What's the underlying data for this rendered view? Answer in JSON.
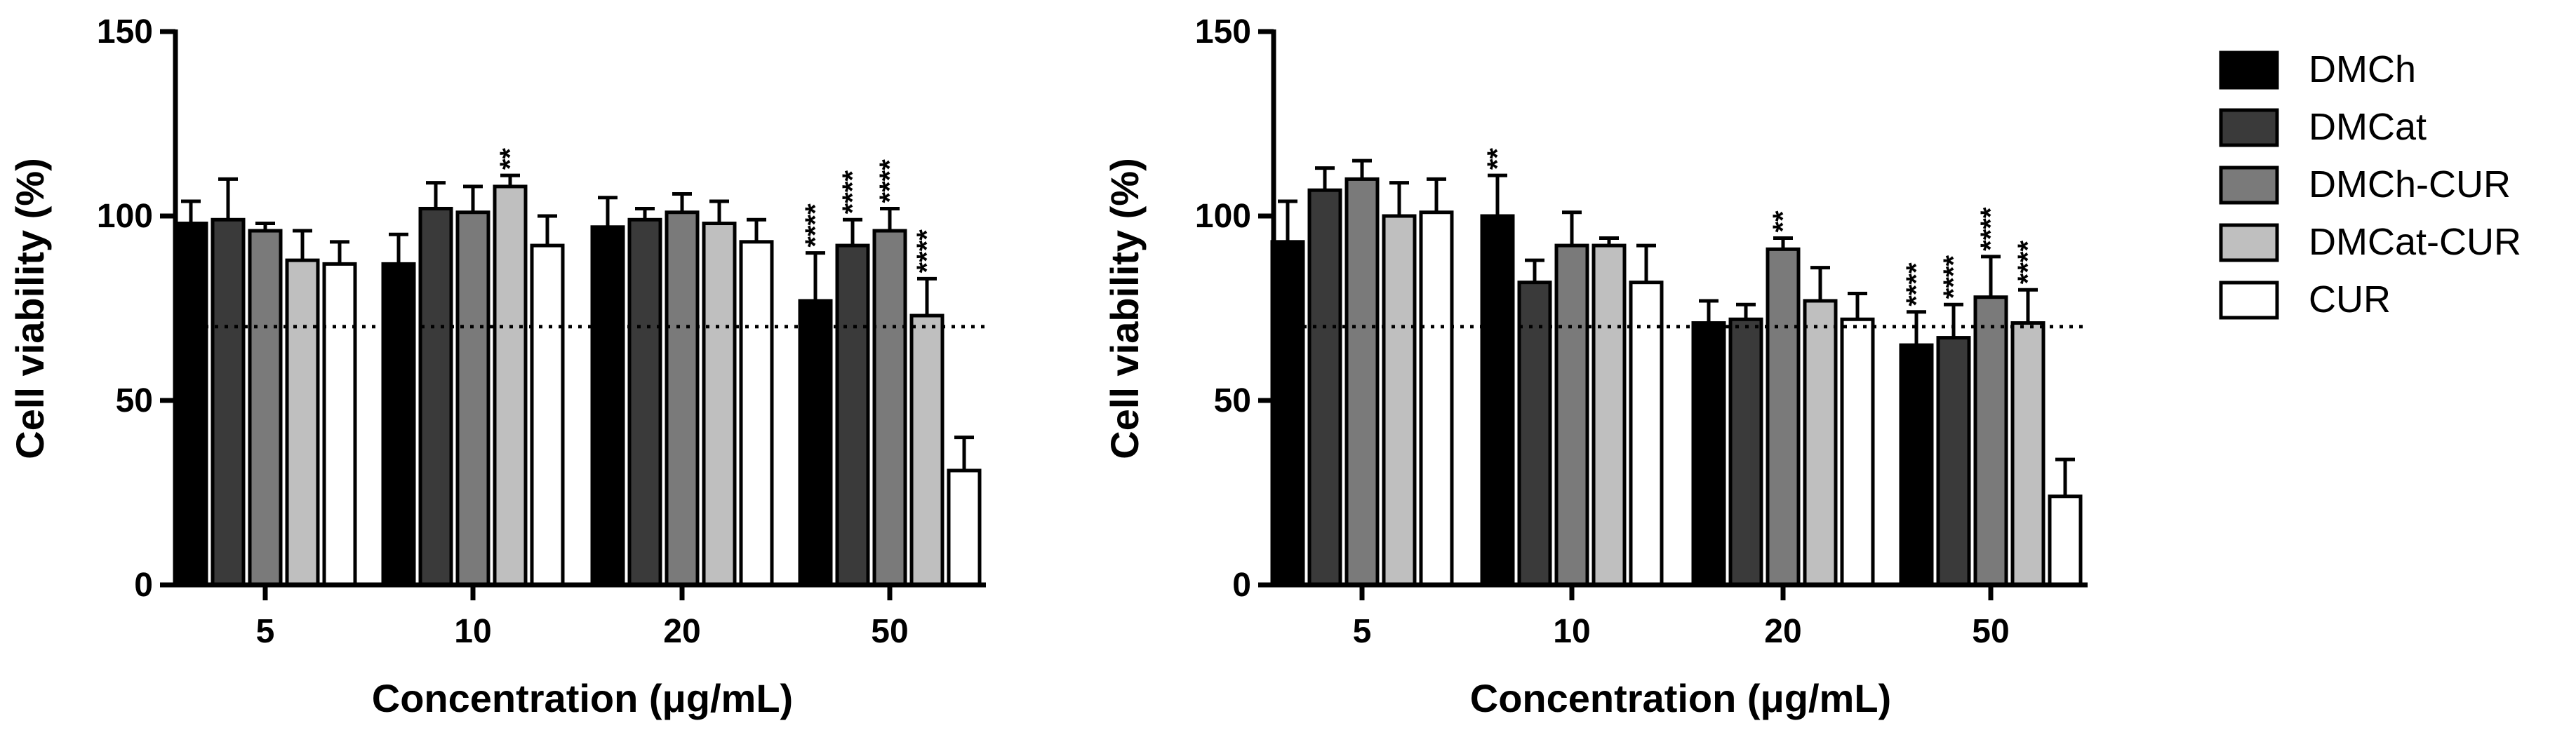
{
  "series_names": [
    "DMCh",
    "DMCat",
    "DMCh-CUR",
    "DMCat-CUR",
    "CUR"
  ],
  "series_colors": [
    "#000000",
    "#3a3a3a",
    "#7a7a7a",
    "#bfbfbf",
    "#ffffff"
  ],
  "chart_data": [
    {
      "type": "bar",
      "title": "",
      "xlabel": "Concentration (μg/mL)",
      "ylabel": "Cell viability (%)",
      "ylim": [
        0,
        150
      ],
      "yticks": [
        "0",
        "50",
        "100",
        "150"
      ],
      "categories": [
        "5",
        "10",
        "20",
        "50"
      ],
      "reference_line": 70,
      "series": [
        {
          "name": "DMCh",
          "values": [
            98,
            87,
            97,
            77
          ],
          "errors": [
            6,
            8,
            8,
            13
          ],
          "significance": [
            "",
            "",
            "",
            "****"
          ]
        },
        {
          "name": "DMCat",
          "values": [
            99,
            102,
            99,
            92
          ],
          "errors": [
            11,
            7,
            3,
            7
          ],
          "significance": [
            "",
            "",
            "",
            "****"
          ]
        },
        {
          "name": "DMCh-CUR",
          "values": [
            96,
            101,
            101,
            96
          ],
          "errors": [
            2,
            7,
            5,
            6
          ],
          "significance": [
            "",
            "",
            "",
            "****"
          ]
        },
        {
          "name": "DMCat-CUR",
          "values": [
            88,
            108,
            98,
            73
          ],
          "errors": [
            8,
            3,
            6,
            10
          ],
          "significance": [
            "",
            "**",
            "",
            "****"
          ]
        },
        {
          "name": "CUR",
          "values": [
            87,
            92,
            93,
            31
          ],
          "errors": [
            6,
            8,
            6,
            9
          ],
          "significance": [
            "",
            "",
            "",
            ""
          ]
        }
      ]
    },
    {
      "type": "bar",
      "title": "",
      "xlabel": "Concentration (μg/mL)",
      "ylabel": "Cell viability (%)",
      "ylim": [
        0,
        150
      ],
      "yticks": [
        "0",
        "50",
        "100",
        "150"
      ],
      "categories": [
        "5",
        "10",
        "20",
        "50"
      ],
      "reference_line": 70,
      "series": [
        {
          "name": "DMCh",
          "values": [
            93,
            100,
            71,
            65
          ],
          "errors": [
            11,
            11,
            6,
            9
          ],
          "significance": [
            "",
            "**",
            "",
            "****"
          ]
        },
        {
          "name": "DMCat",
          "values": [
            107,
            82,
            72,
            67
          ],
          "errors": [
            6,
            6,
            4,
            9
          ],
          "significance": [
            "",
            "",
            "",
            "****"
          ]
        },
        {
          "name": "DMCh-CUR",
          "values": [
            110,
            92,
            91,
            78
          ],
          "errors": [
            5,
            9,
            3,
            11
          ],
          "significance": [
            "",
            "",
            "**",
            "****"
          ]
        },
        {
          "name": "DMCat-CUR",
          "values": [
            100,
            92,
            77,
            71
          ],
          "errors": [
            9,
            2,
            9,
            9
          ],
          "significance": [
            "",
            "",
            "",
            "****"
          ]
        },
        {
          "name": "CUR",
          "values": [
            101,
            82,
            72,
            24
          ],
          "errors": [
            9,
            10,
            7,
            10
          ],
          "significance": [
            "",
            "",
            "",
            ""
          ]
        }
      ]
    }
  ]
}
